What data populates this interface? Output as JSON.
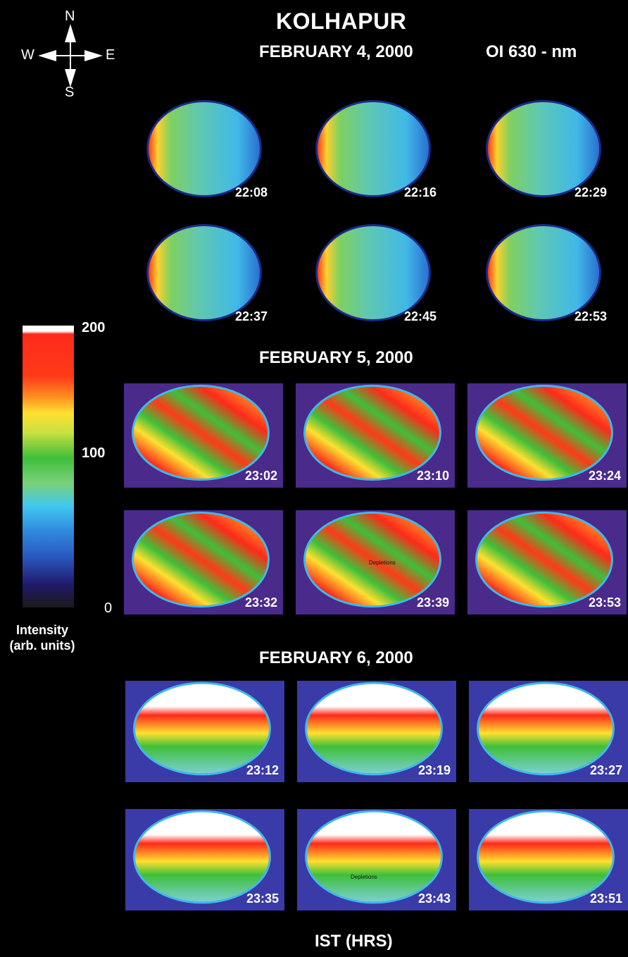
{
  "figure": {
    "title": "KOLHAPUR",
    "wavelength": "OI 630 - nm",
    "x_axis_label": "IST (HRS)",
    "compass": {
      "north": "N",
      "south": "S",
      "east": "E",
      "west": "W"
    },
    "colorbar": {
      "label_line1": "Intensity",
      "label_line2": "(arb. units)",
      "ticks": [
        "200",
        "100",
        "0"
      ],
      "colors_top_to_bottom": [
        "#ffffff",
        "#ff2a1a",
        "#ff3a18",
        "#ff8a20",
        "#ffe030",
        "#c8e040",
        "#3fbf3a",
        "#7ad07a",
        "#40c8f0",
        "#3090e0",
        "#2a58c0",
        "#201a6a",
        "#1a1a1a"
      ]
    },
    "panels": [
      {
        "date": "FEBRUARY 4, 2000",
        "times": [
          "22:08",
          "22:16",
          "22:29",
          "22:37",
          "22:45",
          "22:53"
        ]
      },
      {
        "date": "FEBRUARY 5, 2000",
        "times": [
          "23:02",
          "23:10",
          "23:24",
          "23:32",
          "23:39",
          "23:53"
        ],
        "annotation": "Depletions"
      },
      {
        "date": "FEBRUARY 6, 2000",
        "times": [
          "23:12",
          "23:19",
          "23:27",
          "23:35",
          "23:43",
          "23:51"
        ],
        "annotation": "Depletions"
      }
    ]
  }
}
